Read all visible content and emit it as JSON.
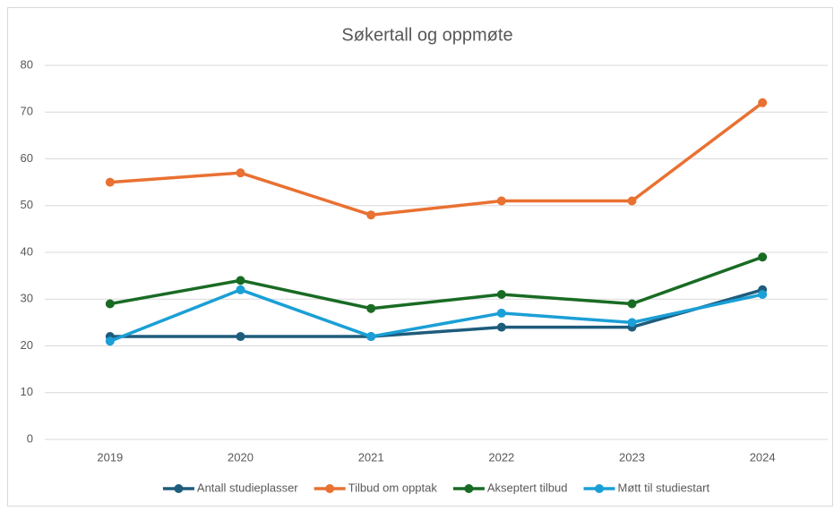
{
  "chart_data": {
    "type": "line",
    "title": "Søkertall og oppmøte",
    "categories": [
      "2019",
      "2020",
      "2021",
      "2022",
      "2023",
      "2024"
    ],
    "series": [
      {
        "name": "Antall studieplasser",
        "color": "#1e5c7c",
        "values": [
          22,
          22,
          22,
          24,
          24,
          32
        ]
      },
      {
        "name": "Tilbud om opptak",
        "color": "#e97132",
        "values": [
          55,
          57,
          48,
          51,
          51,
          72
        ]
      },
      {
        "name": "Akseptert tilbud",
        "color": "#196b24",
        "values": [
          29,
          34,
          28,
          31,
          29,
          39
        ]
      },
      {
        "name": "Møtt til studiestart",
        "color": "#1a9fd6",
        "values": [
          21,
          32,
          22,
          27,
          25,
          31
        ]
      }
    ],
    "ylim": [
      0,
      80
    ],
    "yticks": [
      0,
      10,
      20,
      30,
      40,
      50,
      60,
      70,
      80
    ],
    "grid": true,
    "legend": "bottom"
  }
}
